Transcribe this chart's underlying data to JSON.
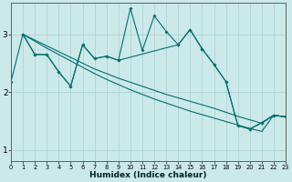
{
  "xlabel": "Humidex (Indice chaleur)",
  "bg_color": "#cce9e9",
  "grid_color": "#aacfcf",
  "line_color": "#007070",
  "xlim": [
    0,
    23
  ],
  "ylim": [
    0.8,
    3.55
  ],
  "yticks": [
    1,
    2,
    3
  ],
  "xticks": [
    0,
    1,
    2,
    3,
    4,
    5,
    6,
    7,
    8,
    9,
    10,
    11,
    12,
    13,
    14,
    15,
    16,
    17,
    18,
    19,
    20,
    21,
    22,
    23
  ],
  "line_jagged_x": [
    0,
    1,
    2,
    3,
    4,
    5,
    6,
    7,
    8,
    9,
    10,
    11,
    12,
    13,
    14,
    15,
    16,
    17,
    18,
    19,
    20,
    21,
    22,
    23
  ],
  "line_jagged_y": [
    2.18,
    3.0,
    2.65,
    2.65,
    2.35,
    2.1,
    2.82,
    2.58,
    2.62,
    2.55,
    3.45,
    2.72,
    3.32,
    3.05,
    2.82,
    3.08,
    2.75,
    2.48,
    2.18,
    1.42,
    1.36,
    1.47,
    1.6,
    1.57
  ],
  "line_trend1_x": [
    1,
    2,
    3,
    4,
    5,
    6,
    7,
    8,
    9,
    10,
    11,
    12,
    13,
    14,
    15,
    16,
    17,
    18,
    19,
    20,
    21,
    22,
    23
  ],
  "line_trend1_y": [
    3.0,
    2.9,
    2.8,
    2.7,
    2.6,
    2.5,
    2.4,
    2.32,
    2.24,
    2.17,
    2.1,
    2.03,
    1.96,
    1.9,
    1.84,
    1.78,
    1.72,
    1.65,
    1.58,
    1.52,
    1.46,
    1.6,
    1.57
  ],
  "line_trend2_x": [
    1,
    2,
    3,
    4,
    5,
    6,
    7,
    8,
    9,
    10,
    11,
    12,
    13,
    14,
    15,
    16,
    17,
    18,
    19,
    20,
    21,
    22,
    23
  ],
  "line_trend2_y": [
    3.0,
    2.88,
    2.76,
    2.65,
    2.54,
    2.43,
    2.32,
    2.22,
    2.13,
    2.04,
    1.96,
    1.88,
    1.81,
    1.74,
    1.67,
    1.61,
    1.55,
    1.49,
    1.43,
    1.37,
    1.32,
    1.6,
    1.57
  ],
  "line_short_x": [
    1,
    2,
    3,
    4,
    5,
    6,
    7,
    8,
    9,
    14,
    15,
    16,
    17,
    18,
    19,
    20,
    21,
    22,
    23
  ],
  "line_short_y": [
    3.0,
    2.65,
    2.65,
    2.35,
    2.1,
    2.82,
    2.58,
    2.62,
    2.55,
    2.82,
    3.08,
    2.75,
    2.48,
    2.18,
    1.42,
    1.36,
    1.47,
    1.6,
    1.57
  ]
}
